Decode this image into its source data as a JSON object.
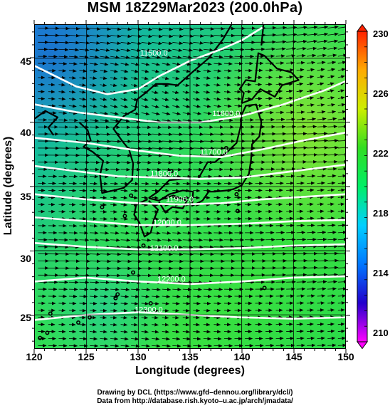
{
  "title": "MSM 18Z29Mar2023 (200.0hPa)",
  "axes": {
    "xlabel": "Longitude (degrees)",
    "ylabel": "Latitude  (degrees)",
    "xticks": [
      "120",
      "125",
      "130",
      "135",
      "140",
      "145",
      "150"
    ],
    "yticks": [
      "45",
      "40",
      "35",
      "30",
      "25"
    ],
    "xlim": [
      120,
      150
    ],
    "ylim": [
      22.4,
      47.6
    ]
  },
  "colorbar": {
    "ticks": [
      "230",
      "226",
      "222",
      "218",
      "214",
      "210"
    ],
    "range": [
      210,
      230
    ],
    "colors": [
      "#ff00ff",
      "#2200cc",
      "#0077ff",
      "#00cfff",
      "#00ee66",
      "#33dd22",
      "#ccee00",
      "#ffaa00",
      "#ff2200"
    ]
  },
  "contours": [
    {
      "label": "11500.0",
      "lon": 131.5,
      "lat": 45.2
    },
    {
      "label": "11600.0",
      "lon": 138.5,
      "lat": 40.5
    },
    {
      "label": "11700.0",
      "lon": 137.3,
      "lat": 37.5
    },
    {
      "label": "11800.0",
      "lon": 132.5,
      "lat": 35.8
    },
    {
      "label": "11900.0",
      "lon": 134.0,
      "lat": 33.8
    },
    {
      "label": "12000.0",
      "lon": 132.8,
      "lat": 32.0
    },
    {
      "label": "12100.0",
      "lon": 132.5,
      "lat": 30.0
    },
    {
      "label": "12200.0",
      "lon": 133.2,
      "lat": 27.6
    },
    {
      "label": "12300.0",
      "lon": 131.0,
      "lat": 25.2
    }
  ],
  "contour_lines": [
    [
      [
        120,
        44.4
      ],
      [
        124,
        42.8
      ],
      [
        127,
        42.2
      ],
      [
        130,
        42.6
      ],
      [
        132,
        43.6
      ],
      [
        135,
        44.8
      ],
      [
        138,
        45.7
      ],
      [
        140,
        46.4
      ],
      [
        142,
        47.4
      ]
    ],
    [
      [
        120,
        41.4
      ],
      [
        124,
        40.8
      ],
      [
        128,
        40.4
      ],
      [
        132,
        40.0
      ],
      [
        136,
        40.0
      ],
      [
        140,
        40.5
      ],
      [
        144,
        41.4
      ],
      [
        148,
        42.5
      ],
      [
        150,
        43.2
      ]
    ],
    [
      [
        120,
        38.8
      ],
      [
        125,
        38.4
      ],
      [
        130,
        37.8
      ],
      [
        134,
        37.4
      ],
      [
        138,
        37.3
      ],
      [
        142,
        37.9
      ],
      [
        146,
        38.6
      ],
      [
        150,
        39.2
      ]
    ],
    [
      [
        120,
        36.6
      ],
      [
        124,
        36.2
      ],
      [
        128,
        35.8
      ],
      [
        132,
        35.7
      ],
      [
        136,
        35.6
      ],
      [
        140,
        35.7
      ],
      [
        144,
        36.1
      ],
      [
        148,
        36.5
      ],
      [
        150,
        36.7
      ]
    ],
    [
      [
        120,
        34.4
      ],
      [
        125,
        34.0
      ],
      [
        130,
        33.7
      ],
      [
        134,
        33.6
      ],
      [
        138,
        33.7
      ],
      [
        142,
        34.0
      ],
      [
        146,
        34.2
      ],
      [
        150,
        34.4
      ]
    ],
    [
      [
        120,
        32.6
      ],
      [
        125,
        32.3
      ],
      [
        130,
        32.0
      ],
      [
        135,
        32.0
      ],
      [
        140,
        32.1
      ],
      [
        145,
        32.3
      ],
      [
        150,
        32.4
      ]
    ],
    [
      [
        120,
        30.6
      ],
      [
        125,
        30.3
      ],
      [
        130,
        30.1
      ],
      [
        135,
        30.1
      ],
      [
        140,
        30.2
      ],
      [
        145,
        30.4
      ],
      [
        150,
        30.5
      ]
    ],
    [
      [
        120,
        27.6
      ],
      [
        125,
        27.9
      ],
      [
        130,
        27.6
      ],
      [
        135,
        27.4
      ],
      [
        140,
        27.6
      ],
      [
        145,
        27.9
      ],
      [
        150,
        28.0
      ]
    ],
    [
      [
        120,
        24.6
      ],
      [
        125,
        25.0
      ],
      [
        130,
        25.2
      ],
      [
        135,
        25.0
      ],
      [
        140,
        24.8
      ],
      [
        145,
        24.7
      ],
      [
        150,
        24.8
      ]
    ]
  ],
  "coastlines": [
    [
      [
        121.8,
        39.0
      ],
      [
        121.3,
        39.6
      ],
      [
        122.2,
        40.4
      ],
      [
        121.0,
        40.9
      ],
      [
        120.0,
        40.3
      ]
    ],
    [
      [
        124.3,
        40.0
      ],
      [
        125.1,
        39.4
      ],
      [
        125.4,
        38.6
      ],
      [
        124.7,
        38.1
      ],
      [
        125.6,
        37.7
      ],
      [
        126.6,
        37.0
      ],
      [
        126.3,
        35.9
      ],
      [
        126.5,
        34.5
      ],
      [
        127.6,
        34.7
      ],
      [
        128.6,
        34.9
      ],
      [
        129.4,
        35.5
      ],
      [
        129.5,
        36.8
      ],
      [
        129.1,
        37.9
      ],
      [
        128.4,
        38.6
      ],
      [
        127.6,
        39.5
      ],
      [
        128.6,
        40.5
      ],
      [
        129.7,
        41.0
      ],
      [
        129.9,
        41.8
      ],
      [
        130.7,
        42.3
      ],
      [
        131.7,
        43.0
      ],
      [
        132.8,
        43.0
      ],
      [
        133.8,
        42.9
      ],
      [
        135.2,
        43.9
      ],
      [
        136.8,
        45.0
      ],
      [
        138.2,
        46.5
      ],
      [
        139.0,
        47.6
      ]
    ],
    [
      [
        130.9,
        34.0
      ],
      [
        129.8,
        33.6
      ],
      [
        129.6,
        32.8
      ],
      [
        130.1,
        32.2
      ],
      [
        130.6,
        31.1
      ],
      [
        131.2,
        31.4
      ],
      [
        131.5,
        32.4
      ],
      [
        131.9,
        33.2
      ],
      [
        131.0,
        33.9
      ]
    ],
    [
      [
        132.0,
        33.8
      ],
      [
        132.6,
        33.0
      ],
      [
        133.3,
        33.4
      ],
      [
        134.3,
        33.3
      ],
      [
        134.7,
        33.9
      ],
      [
        133.4,
        34.3
      ],
      [
        132.2,
        34.0
      ]
    ],
    [
      [
        131.0,
        34.1
      ],
      [
        131.9,
        34.6
      ],
      [
        133.0,
        35.5
      ],
      [
        134.4,
        35.6
      ],
      [
        135.8,
        35.6
      ],
      [
        136.0,
        35.9
      ],
      [
        136.7,
        36.9
      ],
      [
        137.4,
        36.9
      ],
      [
        138.6,
        37.7
      ],
      [
        139.5,
        38.4
      ],
      [
        139.9,
        39.7
      ],
      [
        140.0,
        40.6
      ],
      [
        140.4,
        41.3
      ],
      [
        141.4,
        41.4
      ],
      [
        141.9,
        40.0
      ],
      [
        141.7,
        38.9
      ],
      [
        141.0,
        38.3
      ],
      [
        140.9,
        37.1
      ],
      [
        140.7,
        36.0
      ],
      [
        140.0,
        35.1
      ],
      [
        139.2,
        34.8
      ],
      [
        138.6,
        34.7
      ],
      [
        137.4,
        34.6
      ],
      [
        136.8,
        34.6
      ],
      [
        136.2,
        33.9
      ],
      [
        135.2,
        33.5
      ],
      [
        135.3,
        34.6
      ],
      [
        134.3,
        34.7
      ],
      [
        133.0,
        34.4
      ],
      [
        132.0,
        33.9
      ],
      [
        131.0,
        34.1
      ]
    ],
    [
      [
        140.0,
        41.5
      ],
      [
        140.2,
        42.3
      ],
      [
        139.8,
        42.6
      ],
      [
        140.4,
        43.3
      ],
      [
        141.3,
        43.2
      ],
      [
        141.6,
        45.4
      ],
      [
        142.2,
        45.2
      ],
      [
        143.4,
        44.2
      ],
      [
        144.8,
        43.9
      ],
      [
        145.5,
        43.3
      ],
      [
        143.9,
        42.9
      ],
      [
        143.2,
        42.0
      ],
      [
        141.8,
        42.6
      ],
      [
        141.0,
        41.8
      ],
      [
        140.0,
        41.5
      ]
    ],
    [
      [
        141.9,
        46.0
      ],
      [
        142.1,
        47.6
      ]
    ]
  ],
  "islands": [
    [
      129.3,
      34.3
    ],
    [
      128.7,
      32.7
    ],
    [
      130.5,
      30.4
    ],
    [
      129.5,
      28.3
    ],
    [
      128.0,
      26.6
    ],
    [
      127.8,
      26.3
    ],
    [
      124.2,
      24.4
    ],
    [
      125.3,
      24.8
    ],
    [
      131.2,
      25.9
    ],
    [
      139.6,
      33.1
    ],
    [
      139.5,
      34.4
    ],
    [
      142.2,
      27.1
    ],
    [
      138.5,
      38.0
    ],
    [
      133.2,
      36.2
    ],
    [
      126.5,
      33.4
    ],
    [
      121.5,
      25.1
    ],
    [
      121.2,
      23.6
    ],
    [
      120.5,
      23.2
    ]
  ],
  "vectors": {
    "lon_step": 1.0,
    "lat_step": 0.55
  }
}
